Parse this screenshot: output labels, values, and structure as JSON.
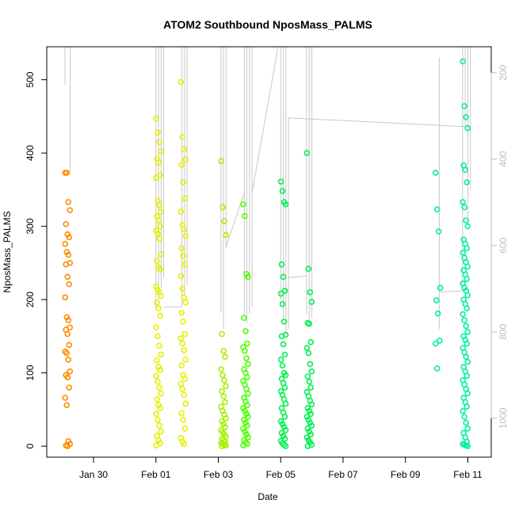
{
  "chart_data": {
    "type": "scatter",
    "title": "ATOM2 Southbound NposMass_PALMS",
    "xlabel": "Date",
    "ylabel": "NposMass_PALMS",
    "x_unit": "date",
    "xlim": [
      "2017-01-28T12:00",
      "2017-02-11T18:00"
    ],
    "ylim": [
      -15,
      545
    ],
    "x_ticks": [
      {
        "date": "2017-01-30",
        "label": "Jan 30"
      },
      {
        "date": "2017-02-01",
        "label": "Feb 01"
      },
      {
        "date": "2017-02-03",
        "label": "Feb 03"
      },
      {
        "date": "2017-02-05",
        "label": "Feb 05"
      },
      {
        "date": "2017-02-07",
        "label": "Feb 07"
      },
      {
        "date": "2017-02-09",
        "label": "Feb 09"
      },
      {
        "date": "2017-02-11",
        "label": "Feb 11"
      }
    ],
    "y_ticks": [
      0,
      100,
      200,
      300,
      400,
      500
    ],
    "y2_ticks": [
      200,
      400,
      600,
      800,
      1000
    ],
    "y2_range": [
      1090,
      140
    ],
    "grid": false,
    "legend": "none",
    "point_colors": {
      "orange": "#ff8c00",
      "yellow": "#e6f000",
      "yellow_green": "#a8f000",
      "green": "#4cff00",
      "bright_green": "#00f050",
      "cyan": "#00f0a0"
    },
    "track_color": "#c8c8c8",
    "flights": [
      {
        "date": "2017-01-29T04:00",
        "color": "#ff8c00",
        "values": [
          373,
          373,
          333,
          322,
          303,
          289,
          285,
          276,
          265,
          261,
          250,
          248,
          231,
          221,
          203,
          176,
          172,
          162,
          159,
          153,
          138,
          129,
          127,
          118,
          102,
          97,
          94,
          80,
          66,
          56,
          7,
          3,
          1,
          0
        ]
      },
      {
        "date": "2017-02-01T02:00",
        "color": "#e6f000",
        "values": [
          447,
          428,
          415,
          402,
          392,
          387,
          370,
          366,
          335,
          329,
          320,
          314,
          308,
          300,
          294,
          290,
          283,
          262,
          253,
          244,
          241,
          218,
          213,
          210,
          205,
          196,
          188,
          178,
          162,
          150,
          137,
          125,
          117,
          108,
          104,
          96,
          88,
          80,
          72,
          64,
          56,
          52,
          44,
          36,
          28,
          20,
          14,
          8,
          4,
          1
        ]
      },
      {
        "date": "2017-02-01T21:00",
        "color": "#e6f000",
        "values": [
          497,
          422,
          405,
          391,
          384,
          360,
          338,
          320,
          302,
          296,
          287,
          270,
          260,
          248,
          232,
          215,
          203,
          196,
          182,
          170,
          153,
          147,
          140,
          131,
          118,
          110,
          97,
          92,
          85,
          78,
          70,
          58,
          45,
          36,
          24,
          11,
          6,
          3
        ]
      },
      {
        "date": "2017-02-03T04:00",
        "color": "#a8f000",
        "values": [
          389,
          326,
          307,
          288,
          153,
          130,
          122,
          105,
          97,
          90,
          82,
          75,
          68,
          60,
          54,
          48,
          43,
          38,
          34,
          30,
          26,
          22,
          19,
          16,
          13,
          10,
          8,
          6,
          4,
          3,
          2,
          1,
          0
        ]
      },
      {
        "date": "2017-02-03T21:00",
        "color": "#4cff00",
        "values": [
          330,
          314,
          235,
          231,
          175,
          157,
          140,
          135,
          130,
          120,
          112,
          105,
          100,
          94,
          89,
          84,
          78,
          72,
          66,
          61,
          56,
          52,
          48,
          44,
          40,
          36,
          32,
          28,
          24,
          20,
          16,
          12,
          8,
          5,
          3,
          1
        ]
      },
      {
        "date": "2017-02-05T02:00",
        "color": "#00f050",
        "values": [
          361,
          348,
          333,
          330,
          248,
          231,
          212,
          208,
          194,
          170,
          152,
          150,
          139,
          125,
          118,
          110,
          100,
          97,
          92,
          86,
          80,
          75,
          70,
          64,
          58,
          52,
          46,
          40,
          34,
          30,
          26,
          22,
          18,
          14,
          10,
          7,
          4,
          2,
          0
        ]
      },
      {
        "date": "2017-02-05T22:00",
        "color": "#00f050",
        "values": [
          400,
          242,
          210,
          197,
          168,
          167,
          142,
          134,
          127,
          112,
          102,
          95,
          88,
          80,
          74,
          68,
          62,
          57,
          52,
          48,
          44,
          40,
          36,
          32,
          28,
          24,
          20,
          16,
          12,
          8,
          5,
          2,
          0
        ]
      },
      {
        "date": "2017-02-10T01:00",
        "color": "#00f0a0",
        "values": [
          373,
          323,
          293,
          216,
          199,
          181,
          144,
          140,
          106
        ]
      },
      {
        "date": "2017-02-10T22:00",
        "color": "#00f0a0",
        "values": [
          525,
          464,
          449,
          434,
          383,
          377,
          360,
          333,
          326,
          308,
          300,
          282,
          276,
          270,
          264,
          257,
          251,
          245,
          240,
          234,
          228,
          222,
          216,
          212,
          206,
          200,
          194,
          188,
          180,
          172,
          164,
          156,
          150,
          145,
          140,
          134,
          128,
          122,
          115,
          108,
          102,
          96,
          90,
          84,
          78,
          72,
          66,
          60,
          54,
          48,
          40,
          32,
          24,
          18,
          12,
          6,
          3,
          2,
          1,
          0
        ]
      }
    ],
    "track_segments": [
      {
        "x_from": "2017-01-29T02:00",
        "y_from": 545,
        "x_to": "2017-01-29T02:00",
        "y_to": 493
      },
      {
        "x_from": "2017-01-29T06:00",
        "y_from": 545,
        "x_to": "2017-01-29T06:00",
        "y_to": 374
      },
      {
        "x_from": "2017-02-01T00:00",
        "y_from": 545,
        "x_to": "2017-02-01T00:00",
        "y_to": 190
      },
      {
        "x_from": "2017-02-01T02:00",
        "y_from": 545,
        "x_to": "2017-02-01T02:00",
        "y_to": 200
      },
      {
        "x_from": "2017-02-01T04:00",
        "y_from": 545,
        "x_to": "2017-02-01T04:00",
        "y_to": 215
      },
      {
        "x_from": "2017-02-01T06:00",
        "y_from": 545,
        "x_to": "2017-02-01T06:00",
        "y_to": 230
      },
      {
        "x_from": "2017-02-01T06:00",
        "y_from": 190,
        "x_to": "2017-02-01T20:00",
        "y_to": 190
      },
      {
        "x_from": "2017-02-01T20:00",
        "y_from": 545,
        "x_to": "2017-02-01T20:00",
        "y_to": 190
      },
      {
        "x_from": "2017-02-01T22:00",
        "y_from": 545,
        "x_to": "2017-02-01T22:00",
        "y_to": 205
      },
      {
        "x_from": "2017-02-02T00:00",
        "y_from": 545,
        "x_to": "2017-02-02T00:00",
        "y_to": 220
      },
      {
        "x_from": "2017-02-03T02:00",
        "y_from": 545,
        "x_to": "2017-02-03T02:00",
        "y_to": 182
      },
      {
        "x_from": "2017-02-03T04:00",
        "y_from": 545,
        "x_to": "2017-02-03T04:00",
        "y_to": 160
      },
      {
        "x_from": "2017-02-03T06:00",
        "y_from": 545,
        "x_to": "2017-02-03T06:00",
        "y_to": 270
      },
      {
        "x_from": "2017-02-03T06:00",
        "y_from": 272,
        "x_to": "2017-02-03T20:00",
        "y_to": 346
      },
      {
        "x_from": "2017-02-03T20:00",
        "y_from": 545,
        "x_to": "2017-02-03T20:00",
        "y_to": 178
      },
      {
        "x_from": "2017-02-03T22:00",
        "y_from": 545,
        "x_to": "2017-02-03T22:00",
        "y_to": 168
      },
      {
        "x_from": "2017-02-04T00:00",
        "y_from": 545,
        "x_to": "2017-02-04T00:00",
        "y_to": 180
      },
      {
        "x_from": "2017-02-04T02:00",
        "y_from": 545,
        "x_to": "2017-02-04T02:00",
        "y_to": 190
      },
      {
        "x_from": "2017-02-04T02:00",
        "y_from": 346,
        "x_to": "2017-02-04T22:00",
        "y_to": 545
      },
      {
        "x_from": "2017-02-05T00:00",
        "y_from": 545,
        "x_to": "2017-02-05T00:00",
        "y_to": 200
      },
      {
        "x_from": "2017-02-05T02:00",
        "y_from": 545,
        "x_to": "2017-02-05T02:00",
        "y_to": 175
      },
      {
        "x_from": "2017-02-05T04:00",
        "y_from": 545,
        "x_to": "2017-02-05T04:00",
        "y_to": 152
      },
      {
        "x_from": "2017-02-05T06:00",
        "y_from": 448,
        "x_to": "2017-02-05T06:00",
        "y_to": 160
      },
      {
        "x_from": "2017-02-05T06:00",
        "y_from": 448,
        "x_to": "2017-02-10T22:00",
        "y_to": 436
      },
      {
        "x_from": "2017-02-05T06:00",
        "y_from": 230,
        "x_to": "2017-02-05T20:00",
        "y_to": 232
      },
      {
        "x_from": "2017-02-05T20:00",
        "y_from": 545,
        "x_to": "2017-02-05T20:00",
        "y_to": 180
      },
      {
        "x_from": "2017-02-05T22:00",
        "y_from": 545,
        "x_to": "2017-02-05T22:00",
        "y_to": 170
      },
      {
        "x_from": "2017-02-06T00:00",
        "y_from": 545,
        "x_to": "2017-02-06T00:00",
        "y_to": 175
      },
      {
        "x_from": "2017-02-10T02:00",
        "y_from": 530,
        "x_to": "2017-02-10T02:00",
        "y_to": 160
      },
      {
        "x_from": "2017-02-10T02:00",
        "y_from": 210,
        "x_to": "2017-02-10T20:00",
        "y_to": 212
      },
      {
        "x_from": "2017-02-10T20:00",
        "y_from": 545,
        "x_to": "2017-02-10T20:00",
        "y_to": 212
      },
      {
        "x_from": "2017-02-10T22:00",
        "y_from": 545,
        "x_to": "2017-02-10T22:00",
        "y_to": 436
      },
      {
        "x_from": "2017-02-11T00:00",
        "y_from": 545,
        "x_to": "2017-02-11T00:00",
        "y_to": 300
      },
      {
        "x_from": "2017-02-11T02:00",
        "y_from": 545,
        "x_to": "2017-02-11T02:00",
        "y_to": 350
      }
    ]
  }
}
